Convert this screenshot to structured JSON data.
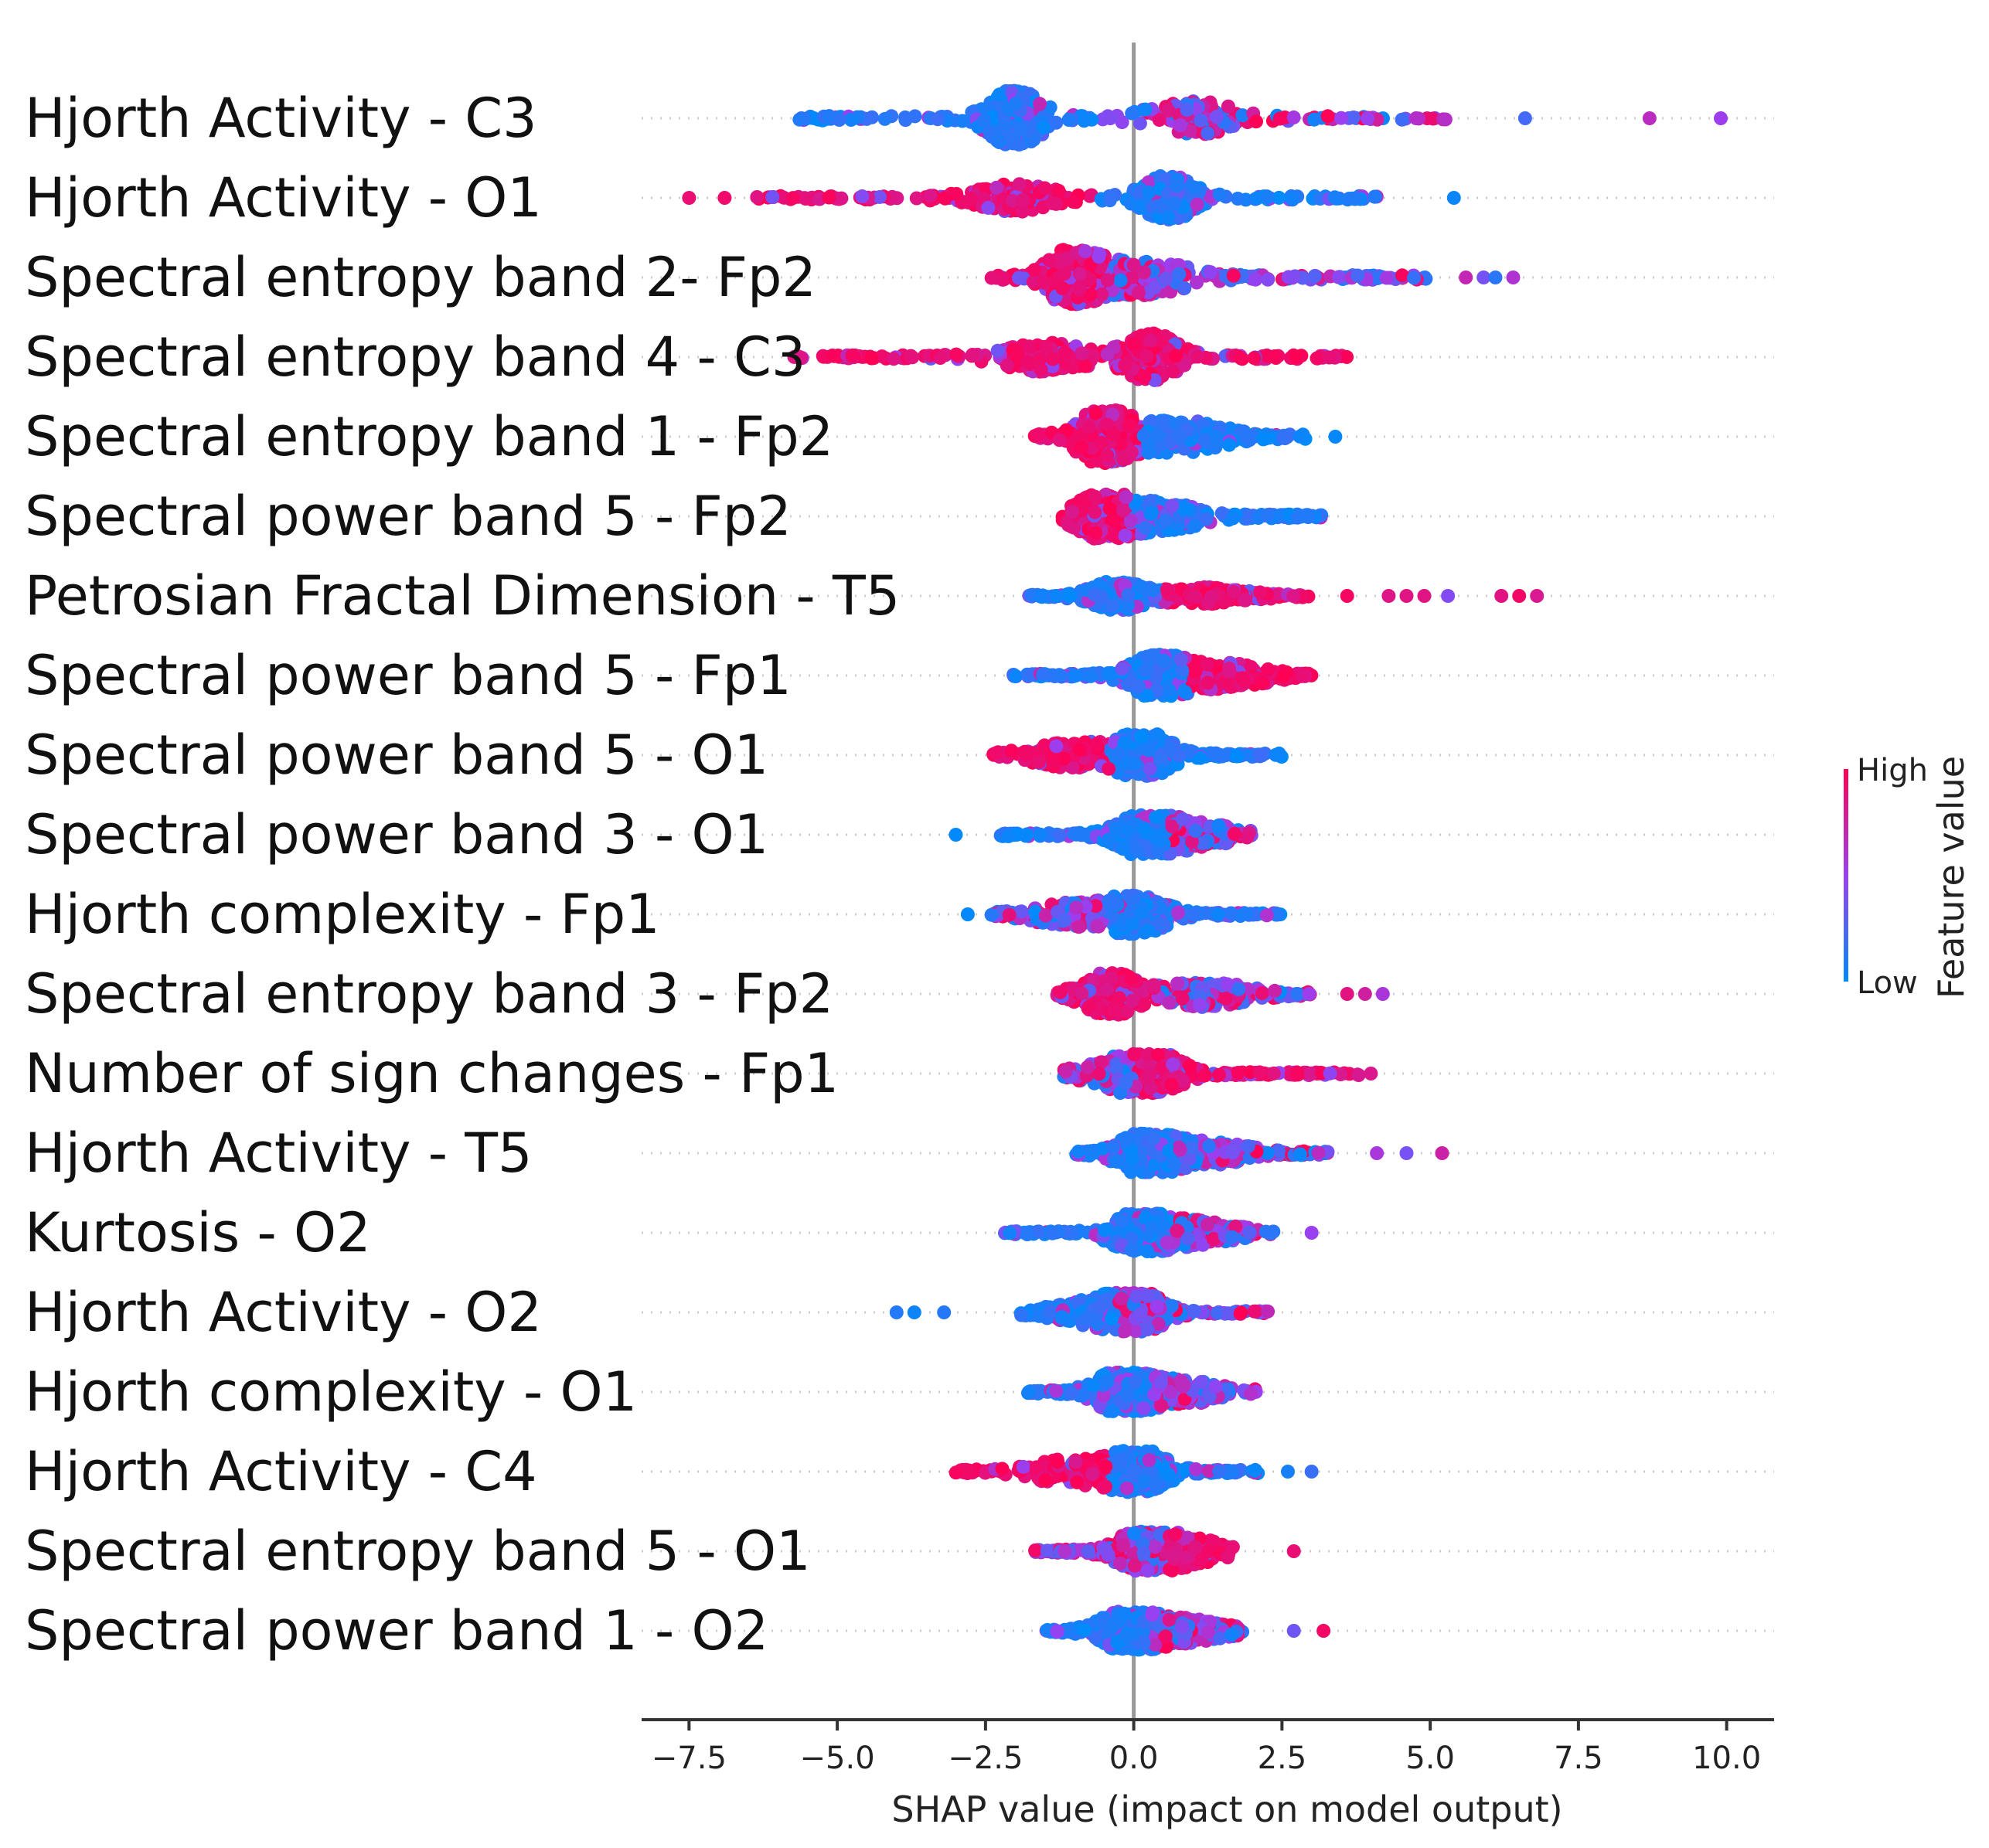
{
  "chart_data": {
    "type": "scatter",
    "subtype": "shap-beeswarm",
    "xlabel": "SHAP value (impact on model output)",
    "xlim": [
      -8.3,
      10.8
    ],
    "xticks": [
      -7.5,
      -5.0,
      -2.5,
      0.0,
      2.5,
      5.0,
      7.5,
      10.0
    ],
    "xtick_labels": [
      "−7.5",
      "−5.0",
      "−2.5",
      "0.0",
      "2.5",
      "5.0",
      "7.5",
      "10.0"
    ],
    "colorbar": {
      "title": "Feature value",
      "high_label": "High",
      "low_label": "Low",
      "high_color": "#ff0052",
      "low_color": "#008bfb"
    },
    "features": [
      {
        "name": "Hjorth Activity - C3",
        "min": -5.8,
        "max": 5.5,
        "peak": -2.0,
        "peak2": 1.0,
        "lo_side": "low",
        "hi_side": "mixed",
        "width": 1.0,
        "outliers": [
          6.6,
          8.7,
          9.9
        ]
      },
      {
        "name": "Hjorth Activity - O1",
        "min": -6.4,
        "max": 4.1,
        "peak": 0.6,
        "peak2": -2.0,
        "lo_side": "high",
        "hi_side": "low",
        "width": 0.8,
        "outliers": [
          -7.5,
          -6.9,
          5.4
        ]
      },
      {
        "name": "Spectral entropy band 2-  Fp2",
        "min": -2.4,
        "max": 5.1,
        "peak": -1.0,
        "peak2": 0.2,
        "lo_side": "high",
        "hi_side": "mixed",
        "width": 1.0,
        "outliers": [
          5.6,
          5.9,
          6.1,
          6.4
        ]
      },
      {
        "name": "Spectral entropy band 4 - C3",
        "min": -5.8,
        "max": 3.6,
        "peak": 0.3,
        "peak2": -1.5,
        "lo_side": "high",
        "hi_side": "high",
        "width": 0.85,
        "outliers": []
      },
      {
        "name": "Spectral entropy band 1 - Fp2",
        "min": -1.7,
        "max": 2.9,
        "peak": -0.5,
        "peak2": 0.8,
        "lo_side": "high",
        "hi_side": "low",
        "width": 0.95,
        "outliers": [
          3.4
        ]
      },
      {
        "name": "Spectral power band 5 - Fp2",
        "min": -1.2,
        "max": 3.2,
        "peak": -0.5,
        "peak2": 0.5,
        "lo_side": "high",
        "hi_side": "low",
        "width": 0.8,
        "outliers": []
      },
      {
        "name": "Petrosian Fractal Dimension - T5",
        "min": -1.8,
        "max": 3.0,
        "peak": -0.3,
        "peak2": 1.2,
        "lo_side": "low",
        "hi_side": "high",
        "width": 0.5,
        "outliers": [
          3.6,
          4.3,
          4.6,
          4.9,
          5.3,
          6.2,
          6.5,
          6.8
        ]
      },
      {
        "name": "Spectral power band 5 - Fp1",
        "min": -2.1,
        "max": 3.0,
        "peak": 0.4,
        "peak2": 1.5,
        "lo_side": "low",
        "hi_side": "high",
        "width": 0.75,
        "outliers": []
      },
      {
        "name": "Spectral power band 5 - O1",
        "min": -2.4,
        "max": 2.5,
        "peak": 0.2,
        "peak2": -1.0,
        "lo_side": "high",
        "hi_side": "low",
        "width": 0.75,
        "outliers": []
      },
      {
        "name": "Spectral power band 3 - O1",
        "min": -2.3,
        "max": 2.0,
        "peak": 0.2,
        "peak2": 1.0,
        "lo_side": "low",
        "hi_side": "mixed",
        "width": 0.7,
        "outliers": [
          -3.0
        ]
      },
      {
        "name": "Hjorth complexity - Fp1",
        "min": -2.4,
        "max": 2.5,
        "peak": 0.1,
        "peak2": -1.0,
        "lo_side": "mixed",
        "hi_side": "low",
        "width": 0.7,
        "outliers": [
          -2.8
        ]
      },
      {
        "name": "Spectral entropy band 3 - Fp2",
        "min": -1.3,
        "max": 3.0,
        "peak": -0.4,
        "peak2": 1.2,
        "lo_side": "high",
        "hi_side": "mixed",
        "width": 0.75,
        "outliers": [
          3.6,
          3.9,
          4.2
        ]
      },
      {
        "name": "Number of sign changes - Fp1",
        "min": -1.2,
        "max": 3.8,
        "peak": 0.3,
        "peak2": -0.2,
        "lo_side": "mixed",
        "hi_side": "high",
        "width": 0.7,
        "outliers": [
          4.0
        ]
      },
      {
        "name": "Hjorth Activity - T5",
        "min": -1.0,
        "max": 3.3,
        "peak": 0.2,
        "peak2": 1.2,
        "lo_side": "low",
        "hi_side": "mixed",
        "width": 0.7,
        "outliers": [
          4.1,
          4.6,
          5.2
        ]
      },
      {
        "name": "Kurtosis - O2",
        "min": -2.2,
        "max": 2.4,
        "peak": 0.1,
        "peak2": 1.0,
        "lo_side": "low",
        "hi_side": "mixed",
        "width": 0.7,
        "outliers": [
          3.0
        ]
      },
      {
        "name": "Hjorth Activity - O2",
        "min": -2.0,
        "max": 2.4,
        "peak": 0.0,
        "peak2": -0.6,
        "lo_side": "low",
        "hi_side": "mixed",
        "width": 0.7,
        "outliers": [
          -4.0,
          -3.7,
          -3.2
        ]
      },
      {
        "name": "Hjorth complexity - O1",
        "min": -1.8,
        "max": 2.1,
        "peak": -0.2,
        "peak2": 0.8,
        "lo_side": "low",
        "hi_side": "mixed",
        "width": 0.7,
        "outliers": []
      },
      {
        "name": "Hjorth Activity - C4",
        "min": -3.0,
        "max": 2.1,
        "peak": 0.1,
        "peak2": -1.0,
        "lo_side": "high",
        "hi_side": "low",
        "width": 0.75,
        "outliers": [
          2.6,
          3.0
        ]
      },
      {
        "name": "Spectral entropy band 5 - O1",
        "min": -1.7,
        "max": 1.7,
        "peak": 0.2,
        "peak2": 0.9,
        "lo_side": "mixed",
        "hi_side": "high",
        "width": 0.7,
        "outliers": [
          2.7
        ]
      },
      {
        "name": "Spectral power band 1 - O2",
        "min": -1.5,
        "max": 1.9,
        "peak": -0.1,
        "peak2": 0.8,
        "lo_side": "low",
        "hi_side": "mixed",
        "width": 0.7,
        "outliers": [
          2.7,
          3.2
        ]
      }
    ]
  }
}
